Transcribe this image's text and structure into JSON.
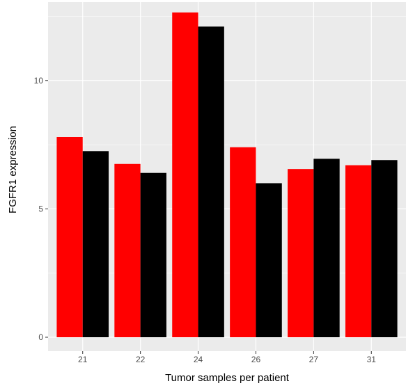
{
  "chart_data": {
    "type": "bar",
    "title": "",
    "xlabel": "Tumor samples per patient",
    "ylabel": "FGFR1 expression",
    "categories": [
      "21",
      "22",
      "24",
      "26",
      "27",
      "31"
    ],
    "series": [
      {
        "values": [
          7.8,
          6.75,
          12.65,
          7.4,
          6.55,
          6.7
        ]
      },
      {
        "values": [
          7.25,
          6.4,
          12.1,
          6.0,
          6.95,
          6.9
        ]
      }
    ],
    "ylim": [
      0,
      13.0
    ],
    "yticks": [
      0,
      5,
      10
    ],
    "grid": true,
    "legend": "none"
  },
  "colors": {
    "panel_background": "#ebebeb",
    "grid_major": "#ffffff",
    "grid_minor": "#f5f5f5",
    "series": [
      "#ff0000",
      "#000000"
    ]
  }
}
